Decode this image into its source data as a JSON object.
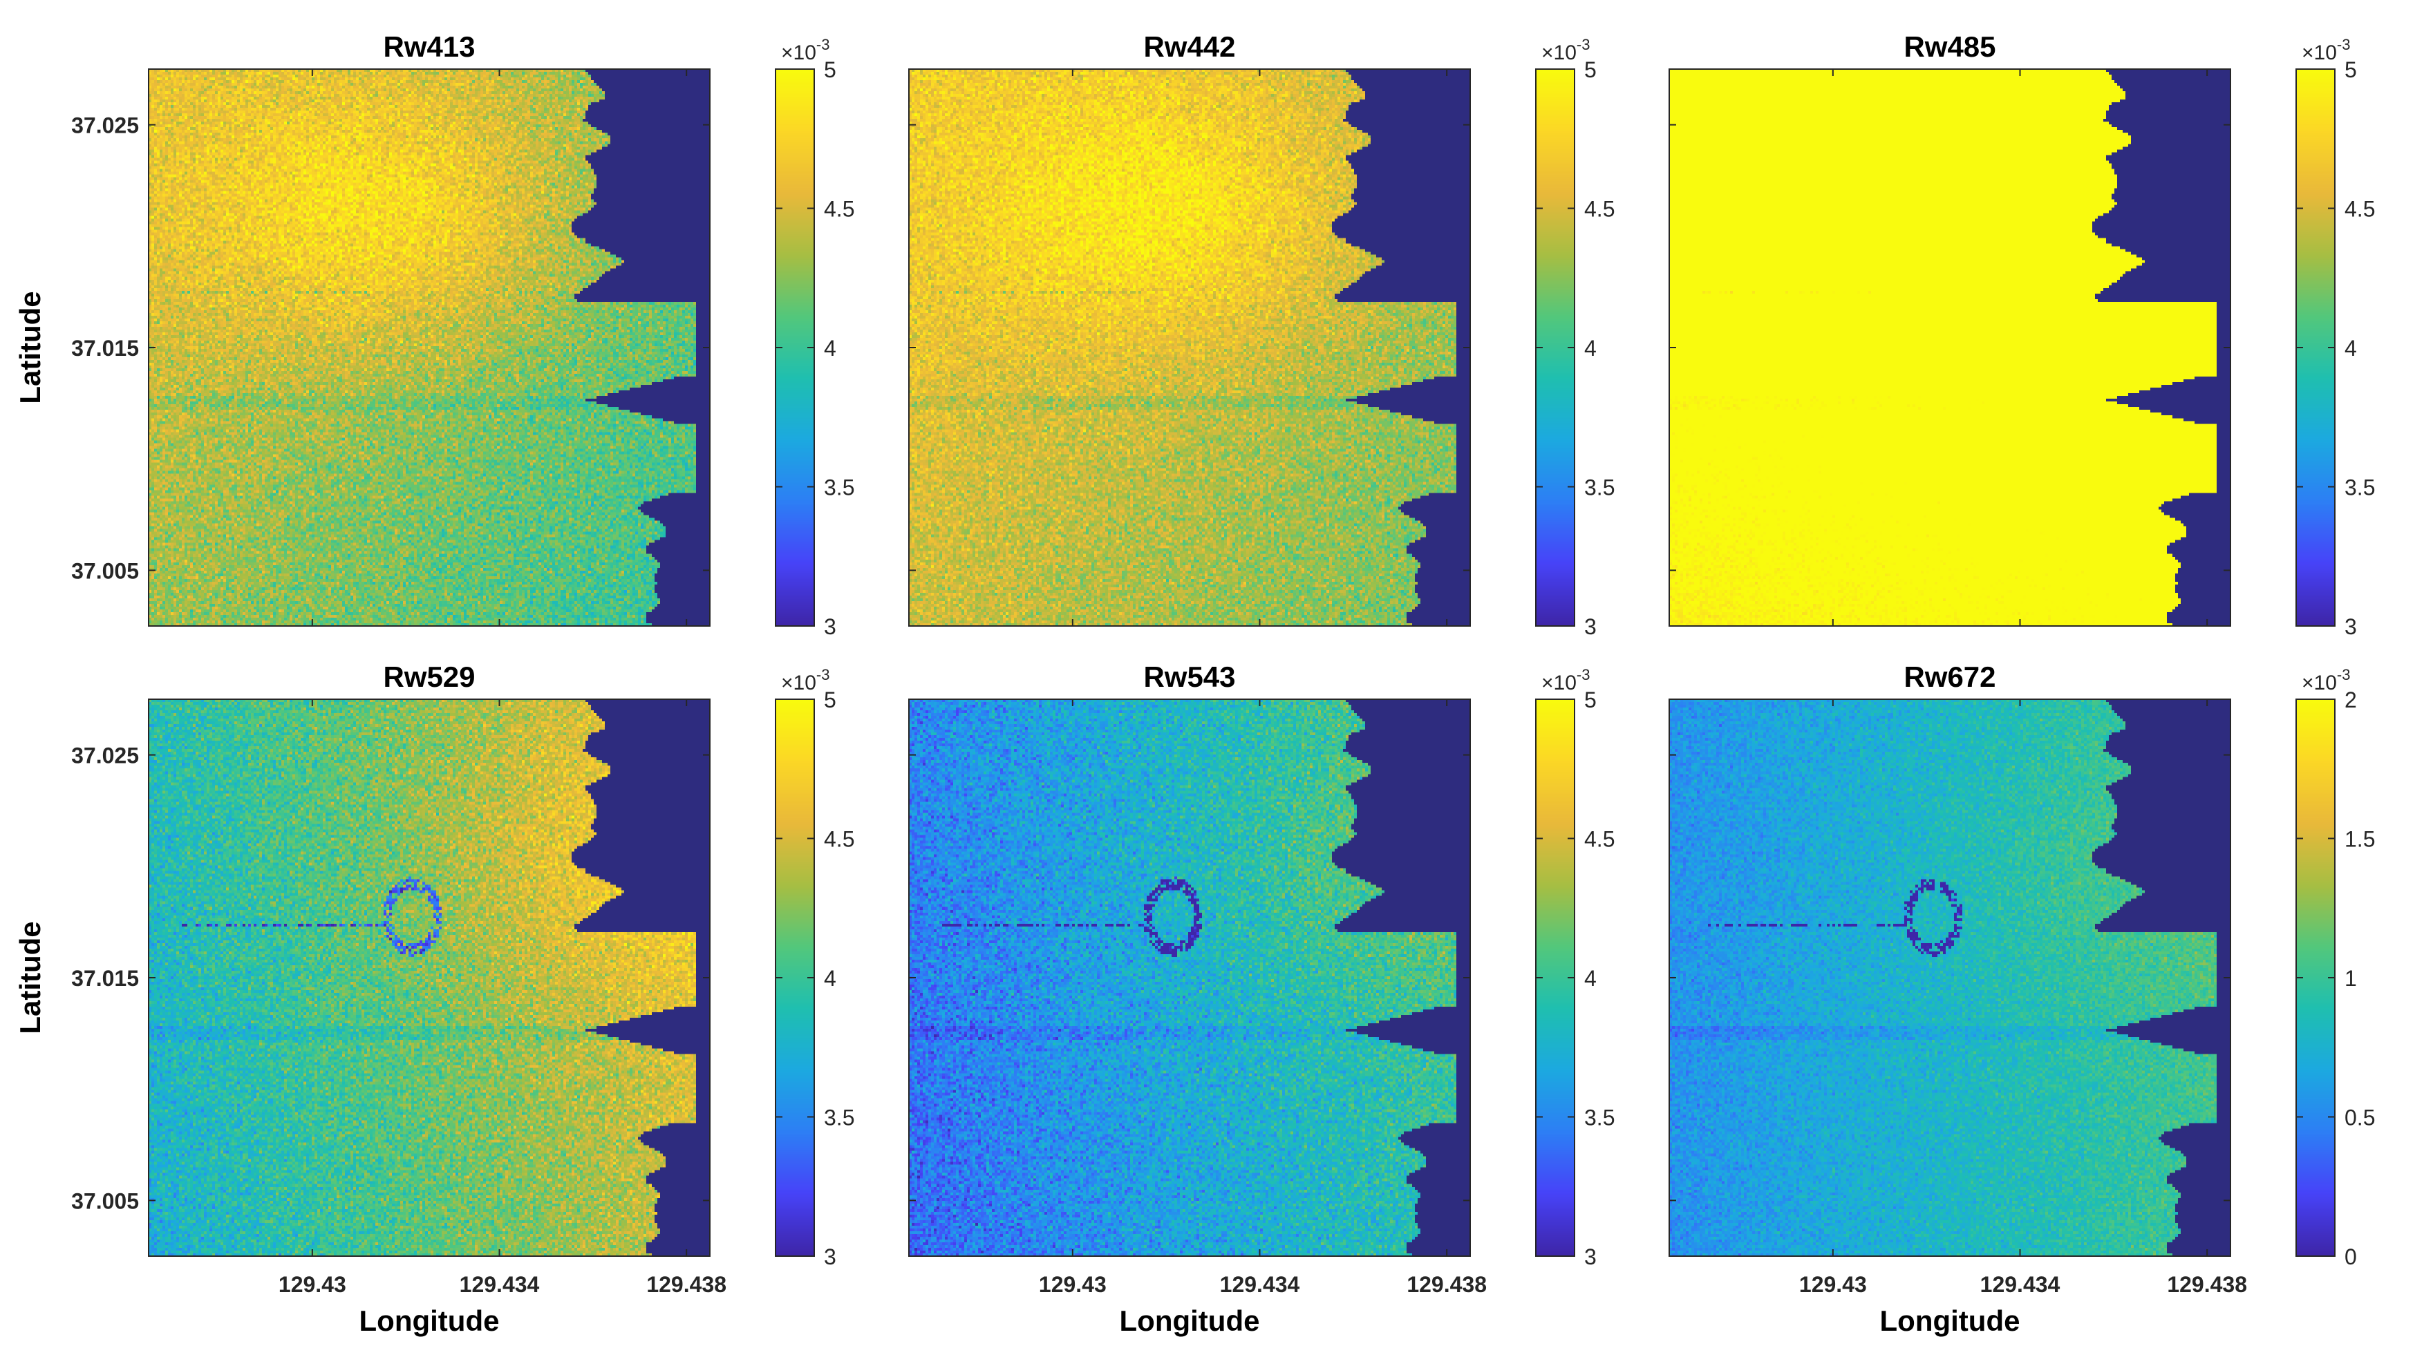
{
  "figure": {
    "x_label": "Longitude",
    "y_label": "Latitude",
    "x_ticks": [
      "129.43",
      "129.434",
      "129.438"
    ],
    "y_ticks": [
      "37.025",
      "37.015",
      "37.005"
    ],
    "colorbar_exponent_base": "×10",
    "colorbar_exponent_power": "-3",
    "colormap": [
      "#3e26a8",
      "#4743f8",
      "#2d7ff5",
      "#1ca9e0",
      "#1fbfb0",
      "#53c77c",
      "#a7be43",
      "#e9b93a",
      "#fbd726",
      "#f9fb0e"
    ],
    "land_color": "#2e2c7f"
  },
  "chart_data": [
    {
      "type": "heatmap",
      "title": "Rw413",
      "x_range": [
        129.4265,
        129.4385
      ],
      "y_range": [
        37.0025,
        37.0275
      ],
      "x_ticks": [
        129.43,
        129.434,
        129.438
      ],
      "y_ticks": [
        37.025,
        37.015,
        37.005
      ],
      "colorbar": {
        "min": 3,
        "max": 5,
        "ticks": [
          "3",
          "3.5",
          "4",
          "4.5",
          "5"
        ],
        "scale": "x10^-3"
      },
      "field": {
        "base": 4.3,
        "hot_lon": 129.4315,
        "hot_lat": 37.021,
        "hot_amp": 0.45,
        "east_trend": -0.35,
        "south_trend": -0.25,
        "noise": 0.28,
        "plume": 0
      }
    },
    {
      "type": "heatmap",
      "title": "Rw442",
      "x_range": [
        129.4265,
        129.4385
      ],
      "y_range": [
        37.0025,
        37.0275
      ],
      "x_ticks": [
        129.43,
        129.434,
        129.438
      ],
      "y_ticks": [
        37.025,
        37.015,
        37.005
      ],
      "colorbar": {
        "min": 3,
        "max": 5,
        "ticks": [
          "3",
          "3.5",
          "4",
          "4.5",
          "5"
        ],
        "scale": "x10^-3"
      },
      "field": {
        "base": 4.45,
        "hot_lon": 129.432,
        "hot_lat": 37.021,
        "hot_amp": 0.4,
        "east_trend": -0.3,
        "south_trend": -0.2,
        "noise": 0.26,
        "plume": 0
      }
    },
    {
      "type": "heatmap",
      "title": "Rw485",
      "x_range": [
        129.4265,
        129.4385
      ],
      "y_range": [
        37.0025,
        37.0275
      ],
      "x_ticks": [
        129.43,
        129.434,
        129.438
      ],
      "y_ticks": [
        37.025,
        37.015,
        37.005
      ],
      "colorbar": {
        "min": 3,
        "max": 5,
        "ticks": [
          "3",
          "3.5",
          "4",
          "4.5",
          "5"
        ],
        "scale": "x10^-3"
      },
      "field": {
        "base": 5.3,
        "hot_lon": 129.432,
        "hot_lat": 37.021,
        "hot_amp": 0.1,
        "east_trend": 0.2,
        "south_trend": -0.45,
        "noise": 0.12,
        "plume": 0
      }
    },
    {
      "type": "heatmap",
      "title": "Rw529",
      "x_range": [
        129.4265,
        129.4385
      ],
      "y_range": [
        37.0025,
        37.0275
      ],
      "x_ticks": [
        129.43,
        129.434,
        129.438
      ],
      "y_ticks": [
        37.025,
        37.015,
        37.005
      ],
      "colorbar": {
        "min": 3,
        "max": 5,
        "ticks": [
          "3",
          "3.5",
          "4",
          "4.5",
          "5"
        ],
        "scale": "x10^-3"
      },
      "field": {
        "base": 4.2,
        "hot_lon": 129.4365,
        "hot_lat": 37.02,
        "hot_amp": 0.2,
        "east_trend": 0.75,
        "south_trend": -0.15,
        "noise": 0.28,
        "plume": 1
      }
    },
    {
      "type": "heatmap",
      "title": "Rw543",
      "x_range": [
        129.4265,
        129.4385
      ],
      "y_range": [
        37.0025,
        37.0275
      ],
      "x_ticks": [
        129.43,
        129.434,
        129.438
      ],
      "y_ticks": [
        37.025,
        37.015,
        37.005
      ],
      "colorbar": {
        "min": 3,
        "max": 5,
        "ticks": [
          "3",
          "3.5",
          "4",
          "4.5",
          "5"
        ],
        "scale": "x10^-3"
      },
      "field": {
        "base": 3.75,
        "hot_lon": 129.4365,
        "hot_lat": 37.02,
        "hot_amp": 0.15,
        "east_trend": 0.6,
        "south_trend": -0.15,
        "noise": 0.28,
        "plume": 1
      }
    },
    {
      "type": "heatmap",
      "title": "Rw672",
      "x_range": [
        129.4265,
        129.4385
      ],
      "y_range": [
        37.0025,
        37.0275
      ],
      "x_ticks": [
        129.43,
        129.434,
        129.438
      ],
      "y_ticks": [
        37.025,
        37.015,
        37.005
      ],
      "colorbar": {
        "min": 0,
        "max": 2,
        "ticks": [
          "0",
          "0.5",
          "1",
          "1.5",
          "2"
        ],
        "scale": "x10^-3"
      },
      "field": {
        "base": 0.8,
        "hot_lon": 129.4365,
        "hot_lat": 37.02,
        "hot_amp": 0.1,
        "east_trend": 0.5,
        "south_trend": 0.0,
        "noise": 0.18,
        "plume": 1
      }
    }
  ]
}
